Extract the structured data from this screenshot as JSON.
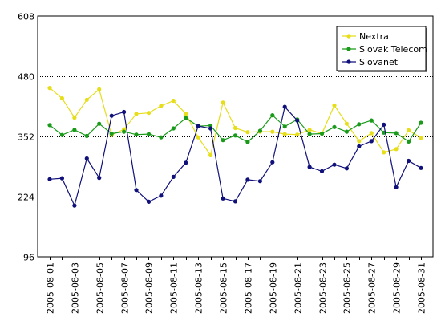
{
  "chart_data": {
    "type": "line",
    "x": [
      "2005-08-01",
      "2005-08-02",
      "2005-08-03",
      "2005-08-04",
      "2005-08-05",
      "2005-08-06",
      "2005-08-07",
      "2005-08-08",
      "2005-08-09",
      "2005-08-10",
      "2005-08-11",
      "2005-08-12",
      "2005-08-13",
      "2005-08-14",
      "2005-08-15",
      "2005-08-16",
      "2005-08-17",
      "2005-08-18",
      "2005-08-19",
      "2005-08-20",
      "2005-08-21",
      "2005-08-22",
      "2005-08-23",
      "2005-08-24",
      "2005-08-25",
      "2005-08-26",
      "2005-08-27",
      "2005-08-28",
      "2005-08-29",
      "2005-08-30",
      "2005-08-31"
    ],
    "x_tick_labels": [
      "2005-08-01",
      "2005-08-03",
      "2005-08-05",
      "2005-08-07",
      "2005-08-09",
      "2005-08-11",
      "2005-08-13",
      "2005-08-15",
      "2005-08-17",
      "2005-08-19",
      "2005-08-21",
      "2005-08-23",
      "2005-08-25",
      "2005-08-27",
      "2005-08-29",
      "2005-08-31"
    ],
    "y_ticks": [
      96,
      224,
      352,
      480,
      608
    ],
    "ylim": [
      96,
      608
    ],
    "grid": "horizontal",
    "legend_position": "top-right",
    "series": [
      {
        "name": "Nextra",
        "color": "#e6de1a",
        "values": [
          455,
          433,
          392,
          430,
          452,
          355,
          367,
          400,
          402,
          417,
          428,
          400,
          350,
          312,
          424,
          370,
          361,
          362,
          362,
          357,
          356,
          366,
          358,
          418,
          379,
          342,
          359,
          318,
          325,
          365,
          349
        ]
      },
      {
        "name": "Slovak Telecom",
        "color": "#1a9a1a",
        "values": [
          376,
          355,
          366,
          353,
          379,
          358,
          362,
          356,
          357,
          350,
          369,
          391,
          374,
          375,
          344,
          354,
          340,
          364,
          397,
          373,
          388,
          357,
          358,
          372,
          362,
          378,
          386,
          360,
          359,
          341,
          381
        ]
      },
      {
        "name": "Slovanet",
        "color": "#10107a",
        "values": [
          261,
          263,
          205,
          305,
          264,
          396,
          404,
          238,
          213,
          226,
          266,
          296,
          374,
          369,
          220,
          214,
          260,
          257,
          297,
          415,
          386,
          287,
          278,
          292,
          284,
          331,
          342,
          377,
          244,
          300,
          285
        ]
      }
    ]
  }
}
